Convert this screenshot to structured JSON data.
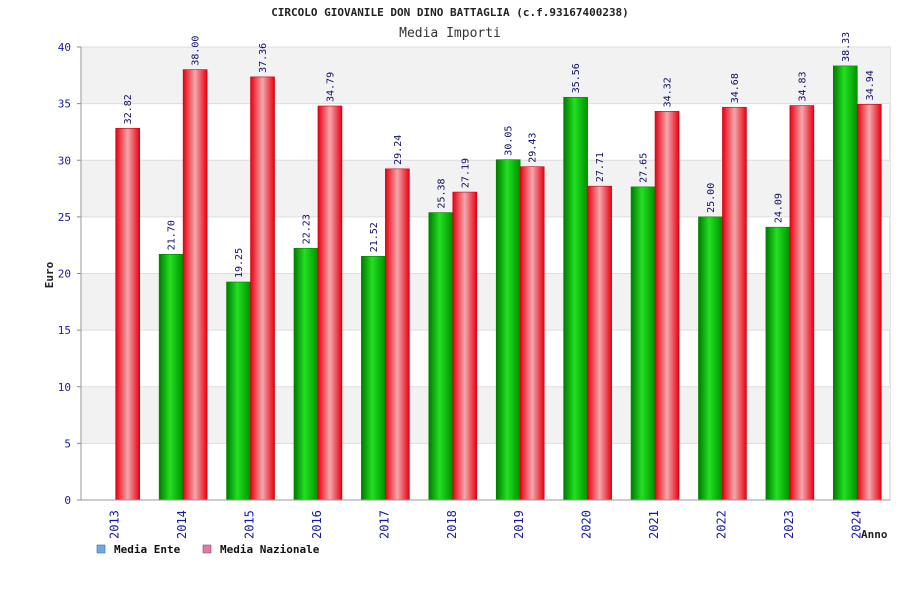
{
  "chart_data": {
    "type": "bar",
    "title": "CIRCOLO GIOVANILE DON DINO BATTAGLIA (c.f.93167400238)",
    "subtitle": "Media Importi",
    "xlabel": "Anno",
    "ylabel": "Euro",
    "ylim": [
      0,
      40
    ],
    "yticks": [
      0,
      5,
      10,
      15,
      20,
      25,
      30,
      35,
      40
    ],
    "grid": true,
    "legend_position": "bottom-left",
    "categories": [
      "2013",
      "2014",
      "2015",
      "2016",
      "2017",
      "2018",
      "2019",
      "2020",
      "2021",
      "2022",
      "2023",
      "2024"
    ],
    "series": [
      {
        "name": "Media Ente",
        "values": [
          null,
          21.7,
          19.25,
          22.23,
          21.52,
          25.38,
          30.05,
          35.56,
          27.65,
          25.0,
          24.09,
          38.33
        ],
        "labels": [
          "",
          "21.70",
          "19.25",
          "22.23",
          "21.52",
          "25.38",
          "30.05",
          "35.56",
          "27.65",
          "25.00",
          "24.09",
          "38.33"
        ],
        "color": "#00b000",
        "legend_color": "#6aa8e8"
      },
      {
        "name": "Media Nazionale",
        "values": [
          32.82,
          38.0,
          37.36,
          34.79,
          29.24,
          27.19,
          29.43,
          27.71,
          34.32,
          34.68,
          34.83,
          34.94
        ],
        "labels": [
          "32.82",
          "38.00",
          "37.36",
          "34.79",
          "29.24",
          "27.19",
          "29.43",
          "27.71",
          "34.32",
          "34.68",
          "34.83",
          "34.94"
        ],
        "color": "#e8101e",
        "legend_color": "#e07aa8"
      }
    ]
  }
}
